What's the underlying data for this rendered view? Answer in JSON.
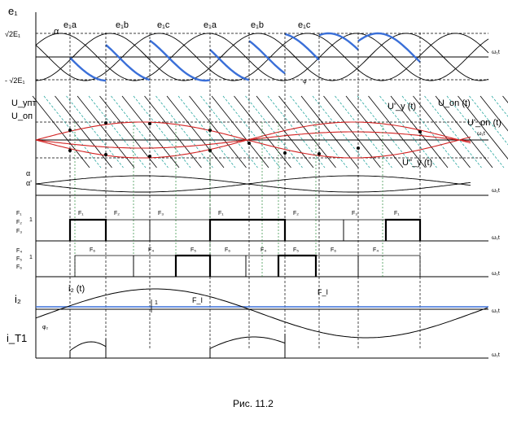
{
  "figure_caption": "Рис. 11.2",
  "axis_omega_t": "ω₁t",
  "panel_phases": {
    "y_axis": "e₁",
    "top_level": "√2E₁",
    "bottom_level": "- √2E₁",
    "angle_alpha": "α",
    "angle_phi": "φ",
    "phase_labels": [
      "e₁a",
      "e₁b",
      "e₁c",
      "e₁a",
      "e₁b",
      "e₁c"
    ]
  },
  "panel_control": {
    "y_axis_1": "U_упт",
    "y_axis_2": "U_оп",
    "u_y": "U'_y (t)",
    "u_on": "U_on (t)",
    "u_on_prime": "U'_on (t)",
    "u_y_2": "U''_y (t)"
  },
  "panel_alpha": {
    "a1": "α",
    "a2": "α'"
  },
  "panel_F_upper": {
    "labels": [
      "F₁",
      "F₂",
      "F₃"
    ],
    "level": "1",
    "pulses": [
      "F₁",
      "F₂",
      "F₃",
      "F₁",
      "F₂",
      "F₃",
      "F₁"
    ]
  },
  "panel_F_lower": {
    "labels": [
      "F₄",
      "F₅",
      "F₆"
    ],
    "level": "1",
    "pulses": [
      "F₆",
      "F₄",
      "F₅",
      "F₆",
      "F₄",
      "F₅",
      "F₆",
      "F₄"
    ]
  },
  "panel_current": {
    "y_axis": "i₂",
    "curve": "i₂ (t)",
    "phi2": "φ₂",
    "f1": "F_I",
    "f2": "F_I",
    "one": "1"
  },
  "panel_it": {
    "y_axis": "i_T1"
  },
  "colors": {
    "phase_highlight": "#3a6fd8",
    "control_red": "#d22222",
    "hatch_teal": "#2aa7a0",
    "guide_green": "#2c8c3c"
  }
}
